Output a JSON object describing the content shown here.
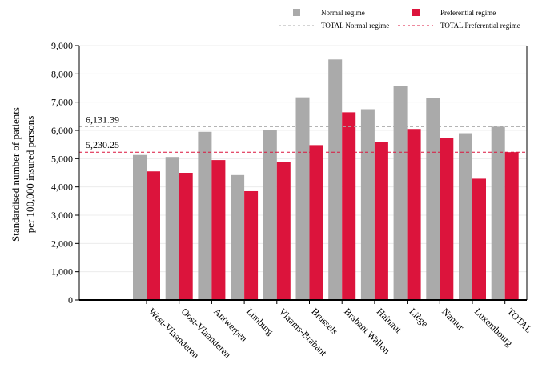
{
  "chart_data": {
    "type": "bar",
    "title": "",
    "xlabel": "",
    "ylabel": "Standardised number of patients\nper 100,000 insured persons",
    "ylim": [
      0,
      9000
    ],
    "yticks": [
      0,
      1000,
      2000,
      3000,
      4000,
      5000,
      6000,
      7000,
      8000,
      9000
    ],
    "ytick_labels": [
      "0",
      "1,000",
      "2,000",
      "3,000",
      "4,000",
      "5,000",
      "6,000",
      "7,000",
      "8,000",
      "9,000"
    ],
    "categories": [
      "West-Vlaanderen",
      "Oost-Vlaanderen",
      "Antwerpen",
      "Limburg",
      "Vlaams-Brabant",
      "Brussels",
      "Brabant Wallon",
      "Hainaut",
      "Liège",
      "Namur",
      "Luxembourg",
      "TOTAL"
    ],
    "series": [
      {
        "name": "Normal regime",
        "color": "#aaaaaa",
        "values": [
          5130,
          5060,
          5950,
          4420,
          6010,
          7170,
          8510,
          6750,
          7580,
          7160,
          5900,
          6131.39
        ]
      },
      {
        "name": "Preferential regime",
        "color": "#dc143c",
        "values": [
          4550,
          4500,
          4950,
          3850,
          4880,
          5480,
          6640,
          5580,
          6050,
          5720,
          4290,
          5230.25
        ]
      }
    ],
    "reference_lines": [
      {
        "name": "TOTAL Normal regime",
        "value": 6131.39,
        "label": "6,131.39",
        "color": "#aaaaaa",
        "style": "dashed"
      },
      {
        "name": "TOTAL Preferential regime",
        "value": 5230.25,
        "label": "5,230.25",
        "color": "#dc143c",
        "style": "dashed"
      }
    ],
    "legend": "top",
    "grid": true
  }
}
